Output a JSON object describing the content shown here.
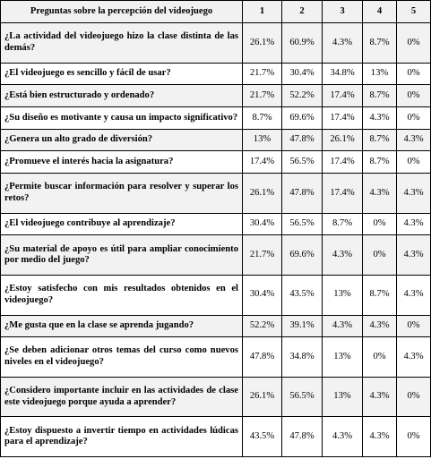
{
  "table": {
    "header": [
      "Preguntas sobre la percepción del videojuego",
      "1",
      "2",
      "3",
      "4",
      "5"
    ],
    "rows": [
      {
        "q": "¿La actividad del videojuego hizo la clase distinta de las demás?",
        "v": [
          "26.1%",
          "60.9%",
          "4.3%",
          "8.7%",
          "0%"
        ]
      },
      {
        "q": "¿El videojuego es sencillo y fácil de usar?",
        "v": [
          "21.7%",
          "30.4%",
          "34.8%",
          "13%",
          "0%"
        ]
      },
      {
        "q": "¿Está bien estructurado y ordenado?",
        "v": [
          "21.7%",
          "52.2%",
          "17.4%",
          "8.7%",
          "0%"
        ]
      },
      {
        "q": "¿Su diseño es motivante y causa un impacto significativo?",
        "v": [
          "8.7%",
          "69.6%",
          "17.4%",
          "4.3%",
          "0%"
        ]
      },
      {
        "q": "¿Genera un alto grado de diversión?",
        "v": [
          "13%",
          "47.8%",
          "26.1%",
          "8.7%",
          "4.3%"
        ]
      },
      {
        "q": "¿Promueve el interés hacia la asignatura?",
        "v": [
          "17.4%",
          "56.5%",
          "17.4%",
          "8.7%",
          "0%"
        ]
      },
      {
        "q": "¿Permite buscar información para resolver y superar los retos?",
        "v": [
          "26.1%",
          "47.8%",
          "17.4%",
          "4.3%",
          "4.3%"
        ]
      },
      {
        "q": "¿El videojuego contribuye al aprendizaje?",
        "v": [
          "30.4%",
          "56.5%",
          "8.7%",
          "0%",
          "4.3%"
        ]
      },
      {
        "q": "¿Su material de apoyo es útil para ampliar conocimiento por medio del juego?",
        "v": [
          "21.7%",
          "69.6%",
          "4.3%",
          "0%",
          "4.3%"
        ]
      },
      {
        "q": "¿Estoy satisfecho con mis resultados obtenidos en el videojuego?",
        "v": [
          "30.4%",
          "43.5%",
          "13%",
          "8.7%",
          "4.3%"
        ]
      },
      {
        "q": "¿Me gusta que en la clase se aprenda jugando?",
        "v": [
          "52.2%",
          "39.1%",
          "4.3%",
          "4.3%",
          "0%"
        ]
      },
      {
        "q": "¿Se deben adicionar otros temas del curso como nuevos niveles en el videojuego?",
        "v": [
          "47.8%",
          "34.8%",
          "13%",
          "0%",
          "4.3%"
        ]
      },
      {
        "q": "¿Considero importante incluir en las actividades de clase este videojuego porque ayuda a aprender?",
        "v": [
          "26.1%",
          "56.5%",
          "13%",
          "4.3%",
          "0%"
        ]
      },
      {
        "q": "¿Estoy dispuesto a invertir tiempo en actividades lúdicas para el aprendizaje?",
        "v": [
          "43.5%",
          "47.8%",
          "4.3%",
          "4.3%",
          "0%"
        ]
      }
    ]
  }
}
